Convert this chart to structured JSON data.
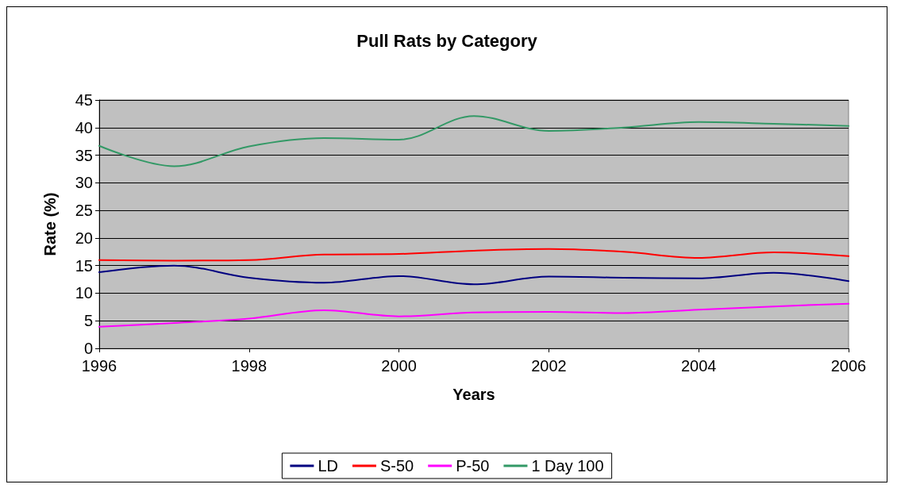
{
  "chart_data": {
    "type": "line",
    "title": "Pull Rats by Category",
    "xlabel": "Years",
    "ylabel": "Rate (%)",
    "x": [
      1996,
      1997,
      1998,
      1999,
      2000,
      2001,
      2002,
      2003,
      2004,
      2005,
      2006
    ],
    "xlim": [
      1996,
      2006
    ],
    "xticks": [
      1996,
      1998,
      2000,
      2002,
      2004,
      2006
    ],
    "ylim": [
      0,
      45
    ],
    "yticks": [
      0,
      5,
      10,
      15,
      20,
      25,
      30,
      35,
      40,
      45
    ],
    "grid": "y",
    "legend": "bottom",
    "marker": "none",
    "line_style": "solid",
    "series": [
      {
        "name": "LD",
        "color": "#000080",
        "values": [
          13.8,
          15.0,
          12.8,
          11.9,
          13.1,
          11.6,
          13.0,
          12.8,
          12.7,
          13.7,
          12.2
        ]
      },
      {
        "name": "S-50",
        "color": "#ff0000",
        "values": [
          16.0,
          15.9,
          16.0,
          17.0,
          17.1,
          17.7,
          18.0,
          17.5,
          16.4,
          17.4,
          16.7
        ]
      },
      {
        "name": "P-50",
        "color": "#ff00ff",
        "values": [
          3.9,
          4.6,
          5.4,
          6.9,
          5.8,
          6.5,
          6.6,
          6.4,
          7.0,
          7.6,
          8.1
        ]
      },
      {
        "name": "1 Day 100",
        "color": "#339966",
        "values": [
          36.7,
          33.0,
          36.6,
          38.1,
          37.8,
          42.1,
          39.4,
          40.0,
          41.0,
          40.7,
          40.3
        ]
      }
    ]
  }
}
